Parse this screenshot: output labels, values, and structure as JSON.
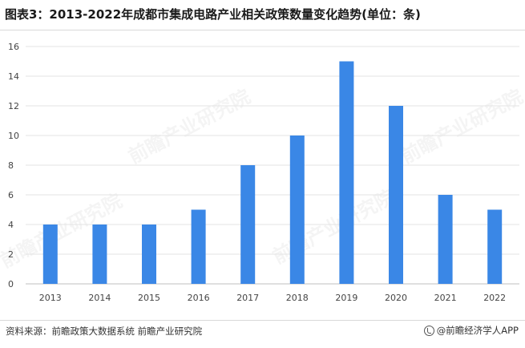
{
  "header": {
    "title": "图表3：2013-2022年成都市集成电路产业相关政策数量变化趋势(单位：条)"
  },
  "footer": {
    "source": "资料来源：前瞻政策大数据系统 前瞻产业研究院",
    "brand": "@前瞻经济学人APP"
  },
  "watermark": {
    "text": "前瞻产业研究院"
  },
  "colors": {
    "bar": "#3a87e6",
    "grid": "#e3e3e3",
    "axis": "#bfbfbf",
    "tick_text": "#444444"
  },
  "chart_data": {
    "type": "bar",
    "title": "图表3：2013-2022年成都市集成电路产业相关政策数量变化趋势(单位：条)",
    "xlabel": "",
    "ylabel": "",
    "categories": [
      "2013",
      "2014",
      "2015",
      "2016",
      "2017",
      "2018",
      "2019",
      "2020",
      "2021",
      "2022"
    ],
    "values": [
      4,
      4,
      4,
      5,
      8,
      10,
      15,
      12,
      6,
      5
    ],
    "ylim": [
      0,
      16
    ],
    "yticks": [
      0,
      2,
      4,
      6,
      8,
      10,
      12,
      14,
      16
    ],
    "grid": true,
    "legend": "none"
  }
}
